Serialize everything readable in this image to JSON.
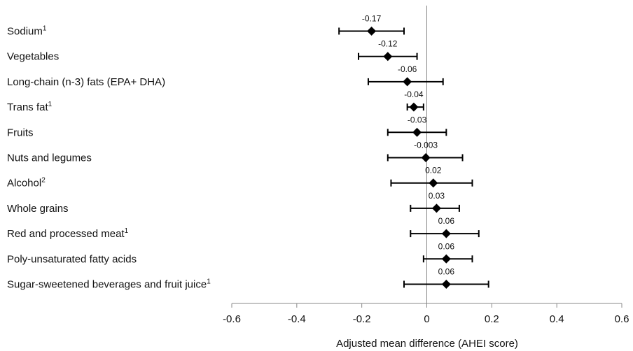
{
  "chart_data": {
    "type": "forest",
    "xlabel": "Adjusted mean difference (AHEI score)",
    "xlim": [
      -0.6,
      0.6
    ],
    "x_ticks": [
      "-0.6",
      "-0.4",
      "-0.2",
      "0",
      "0.2",
      "0.4",
      "0.6"
    ],
    "series": [
      {
        "category": "Sodium",
        "sup": "1",
        "estimate": -0.17,
        "label": "-0.17",
        "ci": [
          -0.27,
          -0.07
        ]
      },
      {
        "category": "Vegetables",
        "sup": "",
        "estimate": -0.12,
        "label": "-0.12",
        "ci": [
          -0.21,
          -0.03
        ]
      },
      {
        "category": "Long-chain (n-3) fats (EPA+ DHA)",
        "sup": "",
        "estimate": -0.06,
        "label": "-0.06",
        "ci": [
          -0.18,
          0.05
        ]
      },
      {
        "category": "Trans fat",
        "sup": "1",
        "estimate": -0.04,
        "label": "-0.04",
        "ci": [
          -0.06,
          -0.01
        ]
      },
      {
        "category": "Fruits",
        "sup": "",
        "estimate": -0.03,
        "label": "-0.03",
        "ci": [
          -0.12,
          0.06
        ]
      },
      {
        "category": "Nuts and legumes",
        "sup": "",
        "estimate": -0.003,
        "label": "-0.003",
        "ci": [
          -0.12,
          0.11
        ]
      },
      {
        "category": "Alcohol",
        "sup": "2",
        "estimate": 0.02,
        "label": "0.02",
        "ci": [
          -0.11,
          0.14
        ]
      },
      {
        "category": "Whole grains",
        "sup": "",
        "estimate": 0.03,
        "label": "0.03",
        "ci": [
          -0.05,
          0.1
        ]
      },
      {
        "category": "Red and processed meat",
        "sup": "1",
        "estimate": 0.06,
        "label": "0.06",
        "ci": [
          -0.05,
          0.16
        ]
      },
      {
        "category": "Poly-unsaturated  fatty acids",
        "sup": "",
        "estimate": 0.06,
        "label": "0.06",
        "ci": [
          -0.01,
          0.14
        ]
      },
      {
        "category": "Sugar-sweetened beverages and fruit juice",
        "sup": "1",
        "estimate": 0.06,
        "label": "0.06",
        "ci": [
          -0.07,
          0.19
        ]
      }
    ]
  }
}
